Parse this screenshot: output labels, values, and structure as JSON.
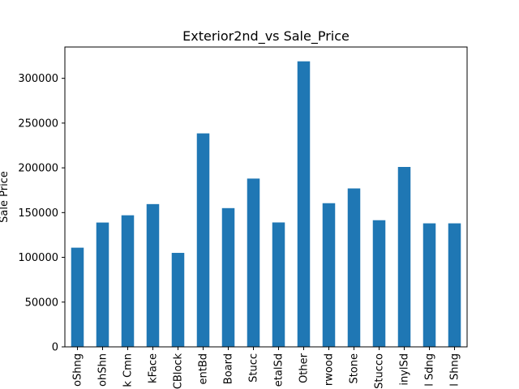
{
  "chart_data": {
    "type": "bar",
    "title": "Exterior2nd_vs Sale_Price",
    "xlabel": "",
    "ylabel": "Sale Price",
    "categories": [
      "AsbShng",
      "AsphShn",
      "Brk Cmn",
      "BrkFace",
      "CBlock",
      "CmentBd",
      "HdBoard",
      "ImStucc",
      "MetalSd",
      "Other",
      "Plywood",
      "Stone",
      "Stucco",
      "VinylSd",
      "Wd Sdng",
      "Wd Shng"
    ],
    "category_labels_visible": [
      "oShng",
      "ohShn",
      "k Cmn",
      "kFace",
      "CBlock",
      "entBd",
      "Board",
      "Stucc",
      "etalSd",
      "Other",
      "rwood",
      "Stone",
      "Stucco",
      "inylSd",
      "l Sdng",
      "l Shng"
    ],
    "values": [
      110800,
      138900,
      147000,
      159500,
      105000,
      238500,
      155000,
      188000,
      139000,
      319000,
      160500,
      177000,
      141500,
      201000,
      138000,
      138000
    ],
    "ylim": [
      0,
      335000
    ],
    "yticks": [
      0,
      50000,
      100000,
      150000,
      200000,
      250000,
      300000
    ],
    "bar_color": "#1f77b4",
    "grid": false,
    "legend": "none"
  }
}
